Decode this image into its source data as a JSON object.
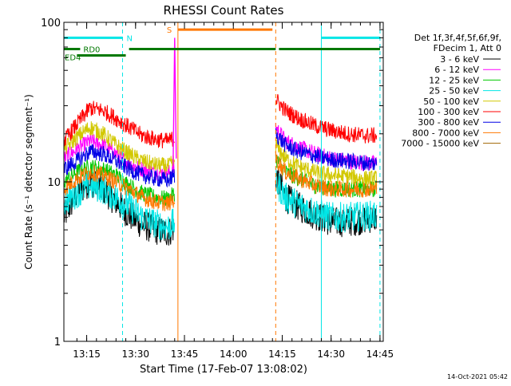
{
  "chart_data": {
    "type": "line",
    "title": "RHESSI Count Rates",
    "xlabel": "Start Time (17-Feb-07 13:08:02)",
    "ylabel": "Count Rate (s⁻¹ detector segment⁻¹)",
    "y_scale": "log",
    "ylim": [
      1,
      100
    ],
    "xlim": [
      "13:08",
      "14:46"
    ],
    "x_ticks": [
      "13:15",
      "13:30",
      "13:45",
      "14:00",
      "14:15",
      "14:30",
      "14:45"
    ],
    "y_ticks": [
      "1",
      "10",
      "100"
    ],
    "grid": false,
    "legend_position": "right",
    "legend_header": [
      "Det 1f,3f,4f,5f,6f,9f,",
      "FDecim 1, Att 0"
    ],
    "series": [
      {
        "name": "3 - 6 keV",
        "color": "#000000",
        "x": [
          "13:08",
          "13:12",
          "13:16",
          "13:20",
          "13:24",
          "13:28",
          "13:32",
          "13:36",
          "13:40",
          "13:42",
          "14:13",
          "14:16",
          "14:20",
          "14:25",
          "14:30",
          "14:35",
          "14:40",
          "14:44"
        ],
        "y": [
          6,
          8.5,
          10,
          9,
          7.5,
          6.2,
          5.4,
          5.0,
          4.8,
          5.2,
          11,
          8,
          7,
          6.2,
          5.6,
          5.6,
          5.8,
          6
        ]
      },
      {
        "name": "6 - 12 keV",
        "color": "#ff00ff",
        "x": [
          "13:08",
          "13:12",
          "13:16",
          "13:20",
          "13:24",
          "13:28",
          "13:32",
          "13:36",
          "13:40",
          "13:42",
          "14:13",
          "14:16",
          "14:20",
          "14:25",
          "14:30",
          "14:35",
          "14:40",
          "14:44"
        ],
        "y": [
          14,
          16,
          18,
          17,
          15,
          13,
          12,
          11.5,
          11.3,
          12,
          22,
          18,
          16.5,
          15,
          14,
          13.5,
          13.2,
          13
        ]
      },
      {
        "name": "12 - 25 keV",
        "color": "#00c800",
        "x": [
          "13:08",
          "13:12",
          "13:16",
          "13:20",
          "13:24",
          "13:28",
          "13:32",
          "13:36",
          "13:40",
          "13:42",
          "14:13",
          "14:16",
          "14:20",
          "14:25",
          "14:30",
          "14:35",
          "14:40",
          "14:44"
        ],
        "y": [
          10,
          11.5,
          12.5,
          12,
          11,
          9.5,
          8.5,
          8,
          7.8,
          8.5,
          14,
          11.5,
          10.5,
          9.5,
          9,
          9,
          9,
          9
        ]
      },
      {
        "name": "25 - 50 keV",
        "color": "#00e6e6",
        "x": [
          "13:08",
          "13:12",
          "13:16",
          "13:20",
          "13:24",
          "13:28",
          "13:32",
          "13:36",
          "13:40",
          "13:42",
          "14:13",
          "14:16",
          "14:20",
          "14:25",
          "14:30",
          "14:35",
          "14:40",
          "14:44"
        ],
        "y": [
          7.5,
          8.5,
          9.5,
          9,
          8,
          7,
          6,
          5.5,
          5.2,
          5.6,
          10,
          8,
          7.2,
          6.5,
          6,
          6,
          6.1,
          6.2
        ]
      },
      {
        "name": "50 - 100 keV",
        "color": "#d2c800",
        "x": [
          "13:08",
          "13:12",
          "13:16",
          "13:20",
          "13:24",
          "13:28",
          "13:32",
          "13:36",
          "13:40",
          "13:42",
          "14:13",
          "14:16",
          "14:20",
          "14:25",
          "14:30",
          "14:35",
          "14:40",
          "14:44"
        ],
        "y": [
          16,
          19,
          22,
          20,
          17,
          15,
          13.5,
          12.8,
          12.5,
          13.5,
          17,
          14,
          12.5,
          11.5,
          11,
          10.8,
          10.5,
          10.5
        ]
      },
      {
        "name": "100 - 300 keV",
        "color": "#ff0000",
        "x": [
          "13:08",
          "13:12",
          "13:16",
          "13:20",
          "13:24",
          "13:28",
          "13:32",
          "13:36",
          "13:40",
          "13:42",
          "14:13",
          "14:16",
          "14:20",
          "14:25",
          "14:30",
          "14:35",
          "14:40",
          "14:44"
        ],
        "y": [
          18,
          23,
          29,
          28,
          25,
          22,
          19.5,
          18.5,
          18,
          19,
          33,
          28,
          25,
          22.5,
          21,
          20,
          19.5,
          19.5
        ]
      },
      {
        "name": "300 - 800 keV",
        "color": "#0000e6",
        "x": [
          "13:08",
          "13:12",
          "13:16",
          "13:20",
          "13:24",
          "13:28",
          "13:32",
          "13:36",
          "13:40",
          "13:42",
          "14:13",
          "14:16",
          "14:20",
          "14:25",
          "14:30",
          "14:35",
          "14:40",
          "14:44"
        ],
        "y": [
          12,
          13.5,
          15.5,
          15,
          13.5,
          12,
          11,
          10.5,
          10.2,
          11,
          20,
          17,
          15.5,
          14.5,
          13.8,
          13.5,
          13.2,
          13
        ]
      },
      {
        "name": "800 - 7000 keV",
        "color": "#ff7800",
        "x": [
          "13:08",
          "13:12",
          "13:16",
          "13:20",
          "13:24",
          "13:28",
          "13:32",
          "13:36",
          "13:40",
          "13:42",
          "14:13",
          "14:16",
          "14:20",
          "14:25",
          "14:30",
          "14:35",
          "14:40",
          "14:44"
        ],
        "y": [
          9,
          10.5,
          11.5,
          11,
          10,
          9,
          8,
          7.5,
          7.3,
          7.8,
          14,
          11.5,
          10.5,
          9.5,
          9,
          9,
          9,
          9
        ]
      },
      {
        "name": "7000 - 15000 keV",
        "color": "#a06400",
        "x": [],
        "y": []
      }
    ],
    "vertical_lines": [
      {
        "x": "13:08",
        "style": "solid",
        "color": "#00e6e6"
      },
      {
        "x": "13:26",
        "style": "dashed",
        "color": "#00e6e6"
      },
      {
        "x": "13:43",
        "style": "solid",
        "color": "#ff7800"
      },
      {
        "x": "14:13",
        "style": "dashed",
        "color": "#ff7800"
      },
      {
        "x": "14:27",
        "style": "solid",
        "color": "#00e6e6"
      },
      {
        "x": "14:45",
        "style": "dashed",
        "color": "#00e6e6"
      }
    ],
    "bars": [
      {
        "label": "N",
        "color": "#00e6e6",
        "y": 80,
        "segments": [
          [
            "13:08",
            "13:26"
          ],
          [
            "14:27",
            "14:45"
          ]
        ]
      },
      {
        "label": "S",
        "color": "#ff7800",
        "y": 90,
        "segments": [
          [
            "13:43",
            "14:12"
          ]
        ]
      },
      {
        "label": "RD0",
        "color": "#007800",
        "y": 68,
        "segments": [
          [
            "13:08",
            "13:13"
          ],
          [
            "13:28",
            "14:13"
          ],
          [
            "14:14",
            "14:45"
          ]
        ]
      },
      {
        "label": "ED4",
        "color": "#007800",
        "y": 62,
        "segments": [
          [
            "13:12",
            "13:27"
          ]
        ]
      }
    ],
    "peak": {
      "x": "13:42",
      "y": 80,
      "color": "#ff00ff"
    }
  },
  "footer": {
    "timestamp": "14-Oct-2021 05:42"
  }
}
